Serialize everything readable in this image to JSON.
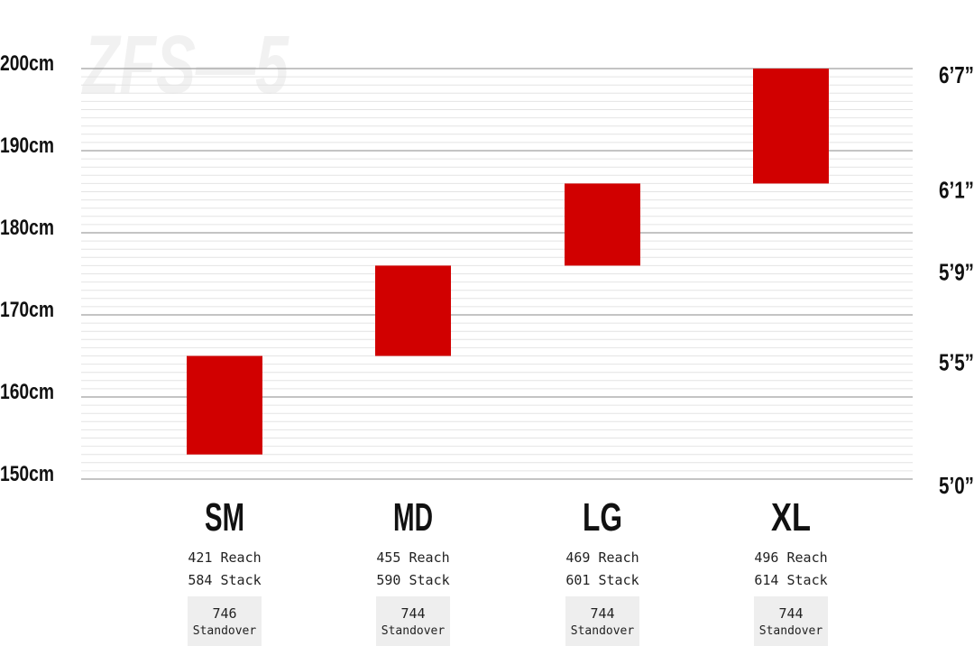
{
  "watermark": "ZFS—5",
  "chart_data": {
    "type": "bar",
    "subtype": "floating-range",
    "title": "",
    "categories": [
      "SM",
      "MD",
      "LG",
      "XL"
    ],
    "ranges": [
      {
        "category": "SM",
        "low": 153,
        "high": 165
      },
      {
        "category": "MD",
        "low": 165,
        "high": 176
      },
      {
        "category": "LG",
        "low": 176,
        "high": 186
      },
      {
        "category": "XL",
        "low": 186,
        "high": 200
      }
    ],
    "ylim": [
      150,
      200
    ],
    "y_ticks_left": [
      {
        "value": 200,
        "label": "200cm"
      },
      {
        "value": 190,
        "label": "190cm"
      },
      {
        "value": 180,
        "label": "180cm"
      },
      {
        "value": 170,
        "label": "170cm"
      },
      {
        "value": 160,
        "label": "160cm"
      },
      {
        "value": 150,
        "label": "150cm"
      }
    ],
    "y_ticks_right": [
      {
        "value": 200,
        "label": "6’7”"
      },
      {
        "value": 186,
        "label": "6’1”"
      },
      {
        "value": 176,
        "label": "5’9”"
      },
      {
        "value": 165,
        "label": "5’5”"
      },
      {
        "value": 150,
        "label": "5’0”"
      }
    ],
    "minor_grid_step": 1,
    "grid": true,
    "bar_color": "#d10000",
    "specs": [
      {
        "size": "SM",
        "reach": "421 Reach",
        "stack": "584 Stack",
        "standover": "746",
        "standover_label": "Standover"
      },
      {
        "size": "MD",
        "reach": "455 Reach",
        "stack": "590 Stack",
        "standover": "744",
        "standover_label": "Standover"
      },
      {
        "size": "LG",
        "reach": "469 Reach",
        "stack": "601 Stack",
        "standover": "744",
        "standover_label": "Standover"
      },
      {
        "size": "XL",
        "reach": "496 Reach",
        "stack": "614 Stack",
        "standover": "744",
        "standover_label": "Standover"
      }
    ]
  }
}
